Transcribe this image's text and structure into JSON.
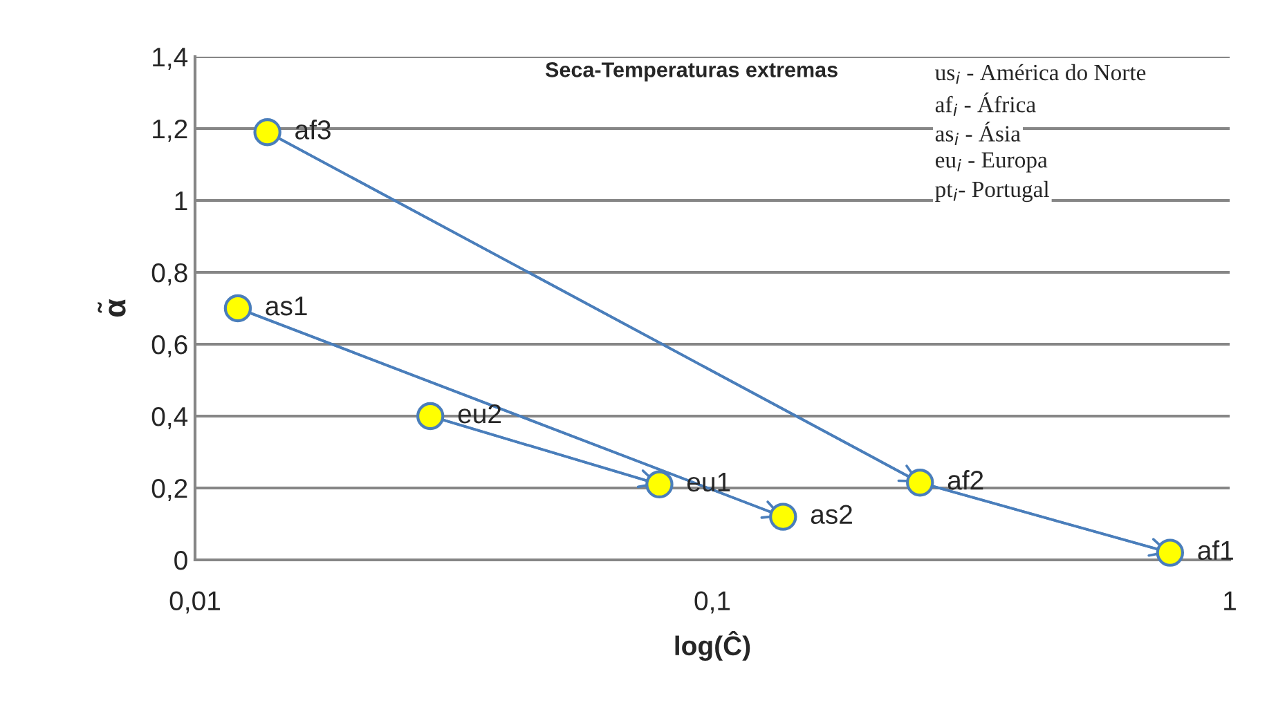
{
  "chart_data": {
    "type": "line",
    "title": "Seca-Temperaturas extremas",
    "xlabel": "log(Ĉ)",
    "ylabel": "α̃",
    "log": "x",
    "grid": "y",
    "marker": "circle",
    "line_style": "solid",
    "xlim": [
      0.01,
      1
    ],
    "xticks": [
      {
        "value": 0.01,
        "label": "0,01"
      },
      {
        "value": 0.1,
        "label": "0,1"
      },
      1
    ],
    "ylim": [
      0,
      1.4
    ],
    "yticks": [
      0,
      {
        "value": 0.2,
        "label": "0,2"
      },
      {
        "value": 0.4,
        "label": "0,4"
      },
      {
        "value": 0.6,
        "label": "0,6"
      },
      {
        "value": 0.8,
        "label": "0,8"
      },
      1,
      {
        "value": 1.2,
        "label": "1,2"
      },
      {
        "value": 1.4,
        "label": "1,4"
      }
    ],
    "series": [
      {
        "color": "#4a7ebb",
        "colors": [
          "#ffff00",
          "#ffff00",
          "#ffff00"
        ],
        "x": [
          0.0138,
          0.252,
          0.767
        ],
        "values": [
          1.19,
          0.215,
          0.02
        ]
      },
      {
        "color": "#4a7ebb",
        "colors": [
          "#ffff00",
          "#ffff00"
        ],
        "x": [
          0.0121,
          0.137
        ],
        "values": [
          0.7,
          0.12
        ]
      },
      {
        "color": "#4a7ebb",
        "colors": [
          "#ffff00",
          "#ffff00"
        ],
        "x": [
          0.0285,
          0.079
        ],
        "values": [
          0.4,
          0.21
        ]
      }
    ],
    "annotations": [
      {
        "text": "af3",
        "x": 0.0138,
        "y": 1.19
      },
      {
        "text": "af2",
        "x": 0.252,
        "y": 0.215
      },
      {
        "text": "af1",
        "x": 0.767,
        "y": 0.02
      },
      {
        "text": "as1",
        "x": 0.0121,
        "y": 0.7
      },
      {
        "text": "as2",
        "x": 0.137,
        "y": 0.12
      },
      {
        "text": "eu2",
        "x": 0.0285,
        "y": 0.4
      },
      {
        "text": "eu1",
        "x": 0.079,
        "y": 0.21
      },
      "us$_{i}$ - América do Norte",
      "af$_{i}$ - África",
      "as$_{i}$ - Ásia",
      "eu$_{i}$ - Europa",
      "pt$_{i}$- Portugal"
    ]
  }
}
